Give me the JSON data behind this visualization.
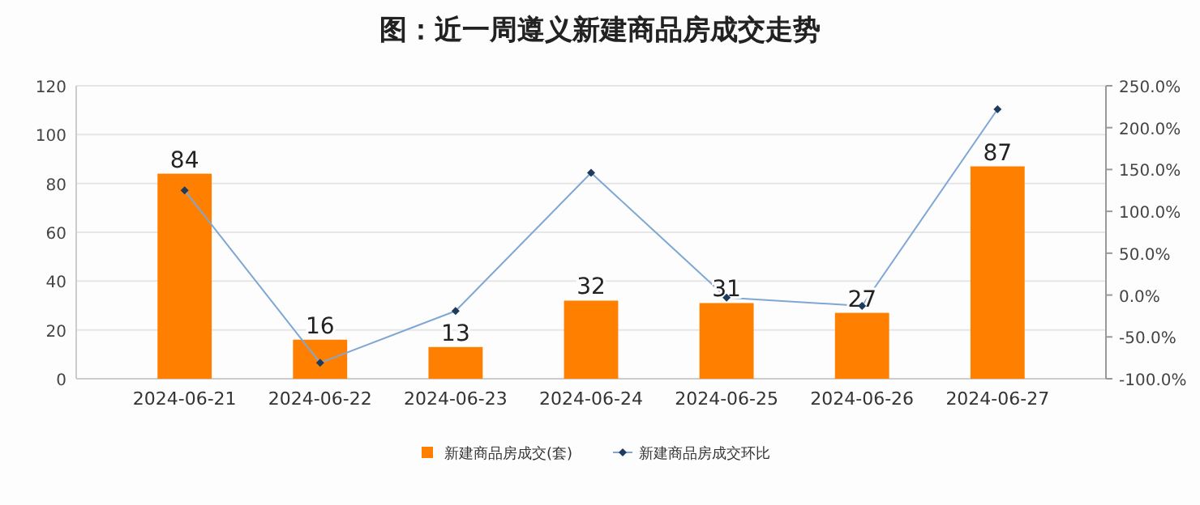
{
  "chart_data": {
    "type": "bar",
    "title": "图：近一周遵义新建商品房成交走势",
    "categories": [
      "2024-06-21",
      "2024-06-22",
      "2024-06-23",
      "2024-06-24",
      "2024-06-25",
      "2024-06-26",
      "2024-06-27"
    ],
    "series": [
      {
        "name": "新建商品房成交(套)",
        "color": "#ff8000",
        "values": [
          84,
          16,
          13,
          32,
          31,
          27,
          87
        ],
        "value_labels": [
          "84",
          "16",
          "13",
          "32",
          "31",
          "27",
          "87"
        ]
      },
      {
        "name": "新建商品房成交环比",
        "type": "line",
        "axis": "y2",
        "color": "#7fa7d4",
        "values": [
          125,
          -81,
          -19,
          146,
          -3,
          -13,
          222
        ]
      }
    ],
    "ylim": [
      0,
      120
    ],
    "yticks": [
      0,
      20,
      40,
      60,
      80,
      100,
      120
    ],
    "y2lim": [
      -100,
      250
    ],
    "y2ticks": [
      {
        "value": -100,
        "label": "-100.0%"
      },
      {
        "value": -50,
        "label": "-50.0%"
      },
      {
        "value": 0,
        "label": "0.0%"
      },
      {
        "value": 50,
        "label": "50.0%"
      },
      {
        "value": 100,
        "label": "100.0%"
      },
      {
        "value": 150,
        "label": "150.0%"
      },
      {
        "value": 200,
        "label": "200.0%"
      },
      {
        "value": 250,
        "label": "250.0%"
      }
    ],
    "grid": "y",
    "legend": "bottom",
    "marker": "diamond",
    "line_style": "solid"
  }
}
